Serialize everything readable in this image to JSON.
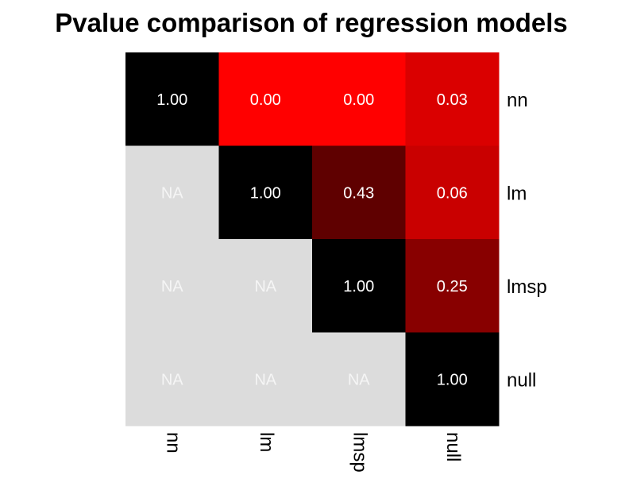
{
  "title": "Pvalue comparison of regression models",
  "chart_data": {
    "type": "heatmap",
    "title": "Pvalue comparison of regression models",
    "x_categories": [
      "nn",
      "lm",
      "lmsp",
      "null"
    ],
    "y_categories": [
      "nn",
      "lm",
      "lmsp",
      "null"
    ],
    "values": [
      [
        1.0,
        0.0,
        0.0,
        0.03
      ],
      [
        null,
        1.0,
        0.43,
        0.06
      ],
      [
        null,
        null,
        1.0,
        0.25
      ],
      [
        null,
        null,
        null,
        1.0
      ]
    ],
    "labels": [
      [
        "1.00",
        "0.00",
        "0.00",
        "0.03"
      ],
      [
        "NA",
        "1.00",
        "0.43",
        "0.06"
      ],
      [
        "NA",
        "NA",
        "1.00",
        "0.25"
      ],
      [
        "NA",
        "NA",
        "NA",
        "1.00"
      ]
    ],
    "color_scale": {
      "low": "#ff0000",
      "high": "#000000",
      "na": "#dcdcdc"
    },
    "label_colors": {
      "value": "#ffffff",
      "na": "#f5f5f5"
    },
    "x_label_rotation": "vertical",
    "y_axis_position": "right",
    "legend": "none",
    "grid": false
  }
}
